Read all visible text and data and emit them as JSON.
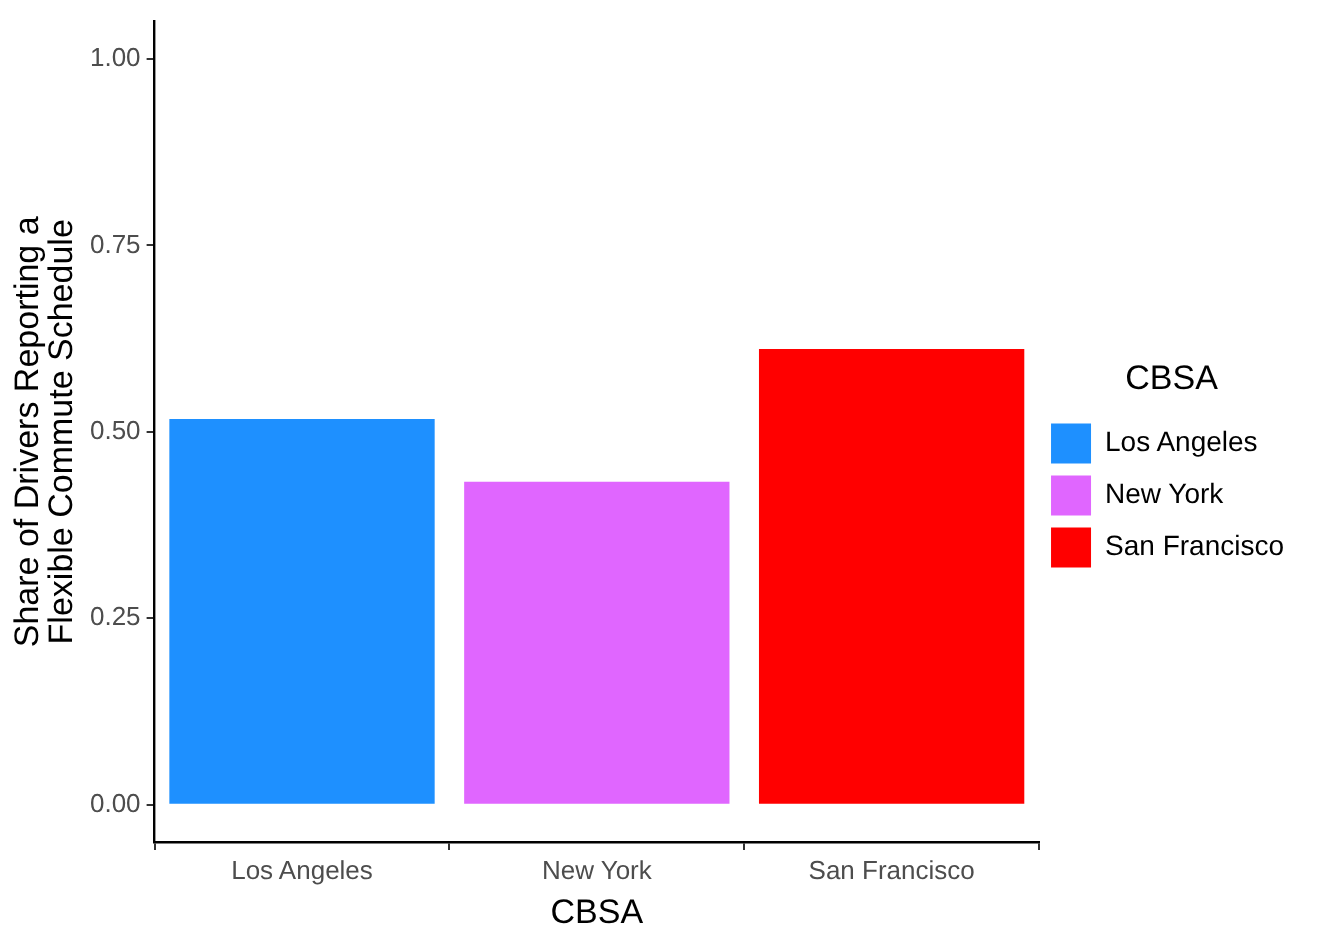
{
  "chart_data": {
    "type": "bar",
    "xlabel": "CBSA",
    "ylabel": "Share of Drivers Reporting a\nFlexible Commute Schedule",
    "legend_title": "CBSA",
    "categories": [
      "Los Angeles",
      "New York",
      "San Francisco"
    ],
    "series": [
      {
        "name": "Los Angeles",
        "color": "#1e90ff",
        "values": [
          0.517,
          null,
          null
        ]
      },
      {
        "name": "New York",
        "color": "#e066ff",
        "values": [
          null,
          0.433,
          null
        ]
      },
      {
        "name": "San Francisco",
        "color": "#ff0000",
        "values": [
          null,
          null,
          0.611
        ]
      }
    ],
    "ylim": [
      -0.05,
      1.05
    ],
    "yticks": [
      {
        "value": 0,
        "label": "0.00"
      },
      {
        "value": 0.25,
        "label": "0.25"
      },
      {
        "value": 0.5,
        "label": "0.50"
      },
      {
        "value": 0.75,
        "label": "0.75"
      },
      {
        "value": 1,
        "label": "1.00"
      }
    ],
    "grid": false,
    "legend": "right"
  }
}
